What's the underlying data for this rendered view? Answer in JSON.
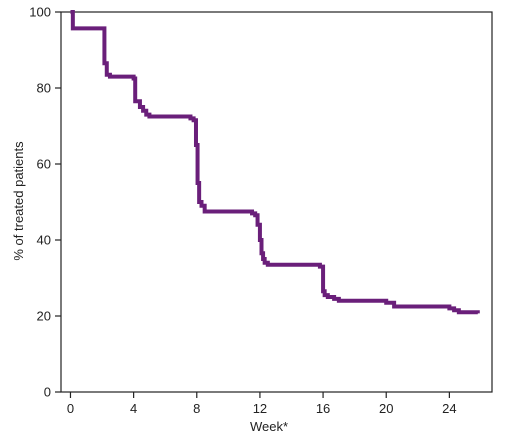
{
  "chart_data": {
    "type": "line",
    "title": "",
    "xlabel": "Week*",
    "ylabel": "% of treated patients",
    "xlim": [
      -0.6,
      26.7
    ],
    "ylim": [
      0,
      100
    ],
    "x_ticks": [
      0,
      4,
      8,
      12,
      16,
      20,
      24
    ],
    "y_ticks": [
      0,
      20,
      40,
      60,
      80,
      100
    ],
    "grid": false,
    "legend": "none",
    "step": true,
    "series_color": "#6a1f7a",
    "series": [
      {
        "x": [
          0,
          0.15,
          2.0,
          2.15,
          2.3,
          2.5,
          4.0,
          4.1,
          4.4,
          4.6,
          4.8,
          5.0,
          7.6,
          7.8,
          7.95,
          8.05,
          8.15,
          8.3,
          8.5,
          11.5,
          11.7,
          11.85,
          12.0,
          12.1,
          12.2,
          12.3,
          12.5,
          15.8,
          16.0,
          16.1,
          16.3,
          16.7,
          17.0,
          19.7,
          20.0,
          20.5,
          24.0,
          24.3,
          24.6,
          25.8
        ],
        "y": [
          100,
          95.7,
          95.7,
          86.5,
          83.5,
          83.0,
          82.5,
          76.5,
          75.0,
          74.0,
          73.0,
          72.5,
          72.0,
          71.5,
          65.0,
          55.0,
          50.0,
          49.0,
          47.5,
          47.0,
          46.5,
          44.0,
          40.0,
          36.5,
          35.0,
          34.0,
          33.5,
          33.0,
          26.5,
          25.5,
          25.0,
          24.5,
          24.0,
          24.0,
          23.5,
          22.5,
          22.0,
          21.5,
          21.0,
          20.7
        ]
      }
    ]
  }
}
